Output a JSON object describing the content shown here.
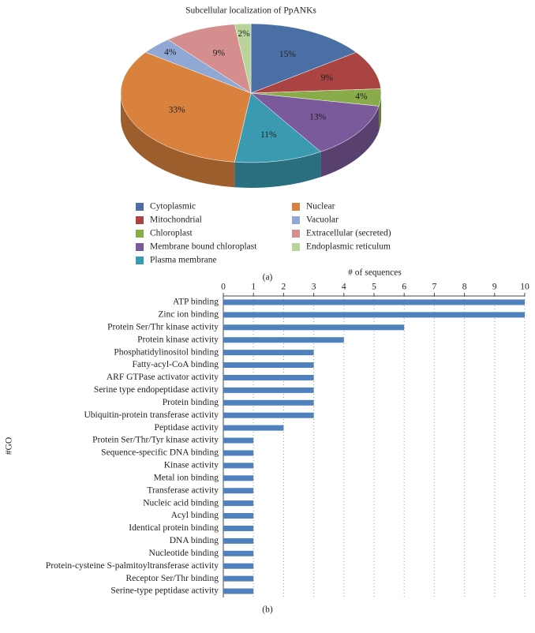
{
  "chart_data": [
    {
      "type": "pie",
      "title": "Subcellular localization of PpANKs",
      "caption": "(a)",
      "categories": [
        "Cytoplasmic",
        "Mitochondrial",
        "Chloroplast",
        "Membrane bound chloroplast",
        "Plasma membrane",
        "Nuclear",
        "Vacuolar",
        "Extracellular (secreted)",
        "Endoplasmic reticulum"
      ],
      "values": [
        15,
        9,
        4,
        13,
        11,
        33,
        4,
        9,
        2
      ],
      "value_labels": [
        "15%",
        "9%",
        "4%",
        "13%",
        "11%",
        "33%",
        "4%",
        "9%",
        "2%"
      ],
      "colors": [
        "#4a6fa5",
        "#a94442",
        "#8aab4a",
        "#7a5a9a",
        "#3a9ab0",
        "#d9823d",
        "#8fa8d4",
        "#d48e8e",
        "#b8d49a"
      ],
      "legend": "bottom"
    },
    {
      "type": "hbar",
      "caption": "(b)",
      "x_label": "# of sequences",
      "y_label": "#GO",
      "categories": [
        "ATP binding",
        "Zinc ion binding",
        "Protein Ser/Thr kinase activity",
        "Protein kinase activity",
        "Phosphatidylinositol binding",
        "Fatty-acyl-CoA binding",
        "ARF GTPase activator activity",
        "Serine type endopeptidase activity",
        "Protein binding",
        "Ubiquitin-protein transferase activity",
        "Peptidase activity",
        "Protein Ser/Thr/Tyr kinase activity",
        "Sequence-specific DNA binding",
        "Kinase activity",
        "Metal ion binding",
        "Transferase activity",
        "Nucleic acid binding",
        "Acyl binding",
        "Identical protein binding",
        "DNA binding",
        "Nucleotide binding",
        "Protein-cysteine S-palmitoyltransferase activity",
        "Receptor Ser/Thr binding",
        "Serine-type peptidase activity"
      ],
      "values": [
        10,
        10,
        6,
        4,
        3,
        3,
        3,
        3,
        3,
        3,
        2,
        1,
        1,
        1,
        1,
        1,
        1,
        1,
        1,
        1,
        1,
        1,
        1,
        1
      ],
      "color": "#4f81bd",
      "xlim": [
        0,
        10
      ],
      "xticks": [
        0,
        1,
        2,
        3,
        4,
        5,
        6,
        7,
        8,
        9,
        10
      ],
      "grid": true
    }
  ]
}
